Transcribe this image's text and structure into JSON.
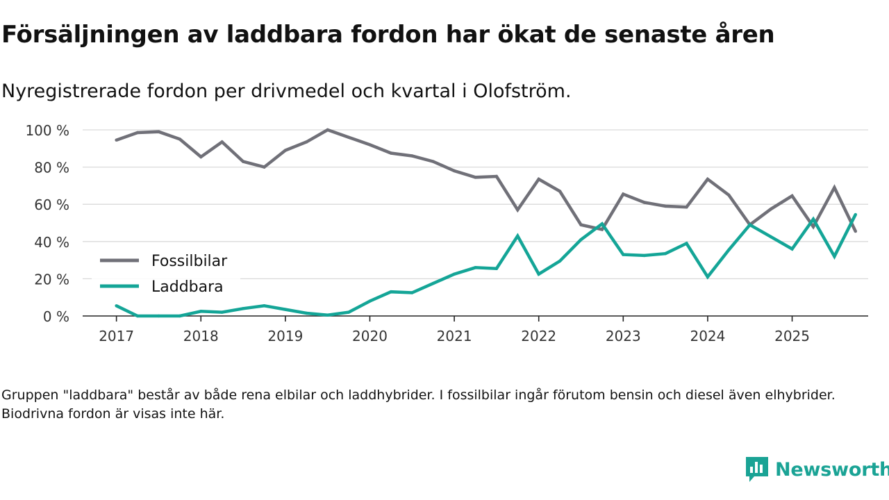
{
  "title": "Försäljningen av laddbara fordon har ökat de senaste åren",
  "subtitle": "Nyregistrerade fordon per drivmedel och kvartal i Olofström.",
  "footnote": "Gruppen \"laddbara\" består av både rena elbilar och laddhybrider. I fossilbilar ingår förutom bensin och diesel även elhybrider. Biodrivna fordon är visas inte här.",
  "brand": {
    "name": "Newsworthy",
    "icon": "newsworthy-logo-icon",
    "color": "#1aa395"
  },
  "chart_data": {
    "type": "line",
    "title": "Försäljningen av laddbara fordon har ökat de senaste åren",
    "subtitle": "Nyregistrerade fordon per drivmedel och kvartal i Olofström.",
    "xlabel": "",
    "ylabel": "",
    "x": [
      2017.0,
      2017.25,
      2017.5,
      2017.75,
      2018.0,
      2018.25,
      2018.5,
      2018.75,
      2019.0,
      2019.25,
      2019.5,
      2019.75,
      2020.0,
      2020.25,
      2020.5,
      2020.75,
      2021.0,
      2021.25,
      2021.5,
      2021.75,
      2022.0,
      2022.25,
      2022.5,
      2022.75,
      2023.0,
      2023.25,
      2023.5,
      2023.75,
      2024.0,
      2024.25,
      2024.5,
      2024.75,
      2025.0,
      2025.25,
      2025.5,
      2025.75
    ],
    "xlim": [
      2016.6,
      2025.9
    ],
    "xticks": [
      2017,
      2018,
      2019,
      2020,
      2021,
      2022,
      2023,
      2024,
      2025
    ],
    "xtick_labels": [
      "2017",
      "2018",
      "2019",
      "2020",
      "2021",
      "2022",
      "2023",
      "2024",
      "2025"
    ],
    "ylim": [
      0,
      100
    ],
    "yticks": [
      0,
      20,
      40,
      60,
      80,
      100
    ],
    "ytick_labels": [
      "0 %",
      "20 %",
      "40 %",
      "60 %",
      "80 %",
      "100 %"
    ],
    "grid": true,
    "legend_position": "bottom-left",
    "series": [
      {
        "name": "Fossilbilar",
        "color": "#707078",
        "values": [
          94.5,
          98.5,
          99,
          95,
          85.5,
          93.5,
          83,
          80,
          89,
          93.5,
          100,
          96,
          92,
          87.5,
          86,
          83,
          78,
          74.5,
          75,
          57,
          73.5,
          67,
          49,
          46.5,
          65.5,
          61,
          59,
          58.5,
          73.5,
          65,
          49,
          57.5,
          64.5,
          48,
          69,
          45.5
        ]
      },
      {
        "name": "Laddbara",
        "color": "#14a597",
        "values": [
          5.5,
          0,
          0,
          0,
          2.5,
          2,
          4,
          5.5,
          3.5,
          1.5,
          0.5,
          2,
          8,
          13,
          12.5,
          17.5,
          22.5,
          26,
          25.5,
          43,
          22.5,
          29.5,
          41,
          49.5,
          33,
          32.5,
          33.5,
          39,
          21,
          35.5,
          49,
          42.5,
          36,
          52,
          32,
          54.5
        ]
      }
    ]
  }
}
